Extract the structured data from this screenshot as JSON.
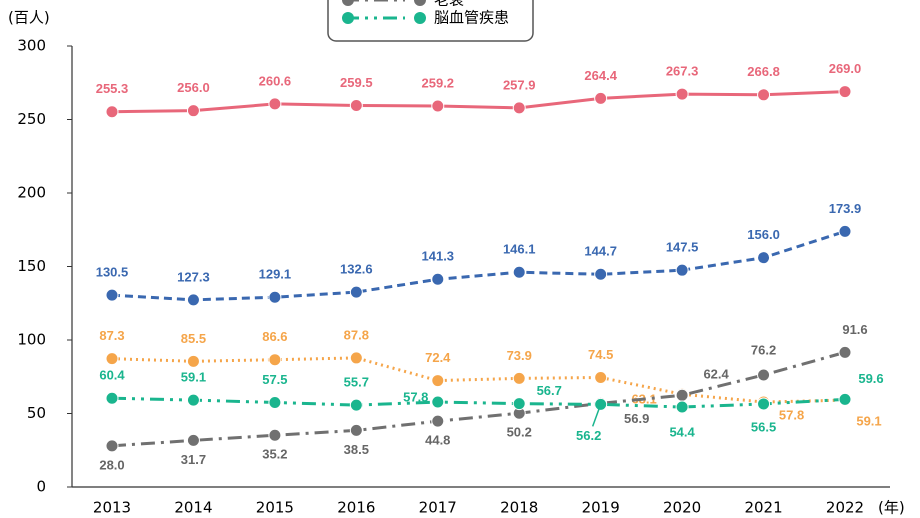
{
  "chart_data": {
    "type": "line",
    "y_label": "(百人)",
    "x_label": "(年)",
    "categories": [
      "2013",
      "2014",
      "2015",
      "2016",
      "2017",
      "2018",
      "2019",
      "2020",
      "2021",
      "2022"
    ],
    "ylim": [
      0,
      300
    ],
    "yticks": [
      0,
      50,
      100,
      150,
      200,
      250,
      300
    ],
    "series": [
      {
        "color": "#e8677a",
        "style": "solid",
        "values": [
          255.3,
          256.0,
          260.6,
          259.5,
          259.2,
          257.9,
          264.4,
          267.3,
          266.8,
          269.0
        ],
        "value_labels": [
          "255.3",
          "256.0",
          "260.6",
          "259.5",
          "259.2",
          "257.9",
          "264.4",
          "267.3",
          "266.8",
          "269.0"
        ]
      },
      {
        "color": "#3a68b0",
        "style": "dashed",
        "values": [
          130.5,
          127.3,
          129.1,
          132.6,
          141.3,
          146.1,
          144.7,
          147.5,
          156.0,
          173.9
        ],
        "value_labels": [
          "130.5",
          "127.3",
          "129.1",
          "132.6",
          "141.3",
          "146.1",
          "144.7",
          "147.5",
          "156.0",
          "173.9"
        ]
      },
      {
        "color": "#f5a54a",
        "style": "dotted",
        "values": [
          87.3,
          85.5,
          86.6,
          87.8,
          72.4,
          73.9,
          74.5,
          63.1,
          57.8,
          59.1
        ],
        "value_labels": [
          "87.3",
          "85.5",
          "86.6",
          "87.8",
          "72.4",
          "73.9",
          "74.5",
          "63.1",
          "57.8",
          "59.1"
        ]
      },
      {
        "name": "老衰",
        "color": "#707070",
        "style": "dashdot",
        "values": [
          28.0,
          31.7,
          35.2,
          38.5,
          44.8,
          50.2,
          56.9,
          62.4,
          76.2,
          91.6
        ],
        "value_labels": [
          "28.0",
          "31.7",
          "35.2",
          "38.5",
          "44.8",
          "50.2",
          "56.9",
          "62.4",
          "76.2",
          "91.6"
        ]
      },
      {
        "name": "脳血管疾患",
        "color": "#1ab58e",
        "style": "dashdotdot",
        "values": [
          60.4,
          59.1,
          57.5,
          55.7,
          57.8,
          56.7,
          56.2,
          54.4,
          56.5,
          59.6
        ],
        "value_labels": [
          "60.4",
          "59.1",
          "57.5",
          "55.7",
          "57.8",
          "56.7",
          "56.2",
          "54.4",
          "56.5",
          "59.6"
        ]
      }
    ]
  }
}
